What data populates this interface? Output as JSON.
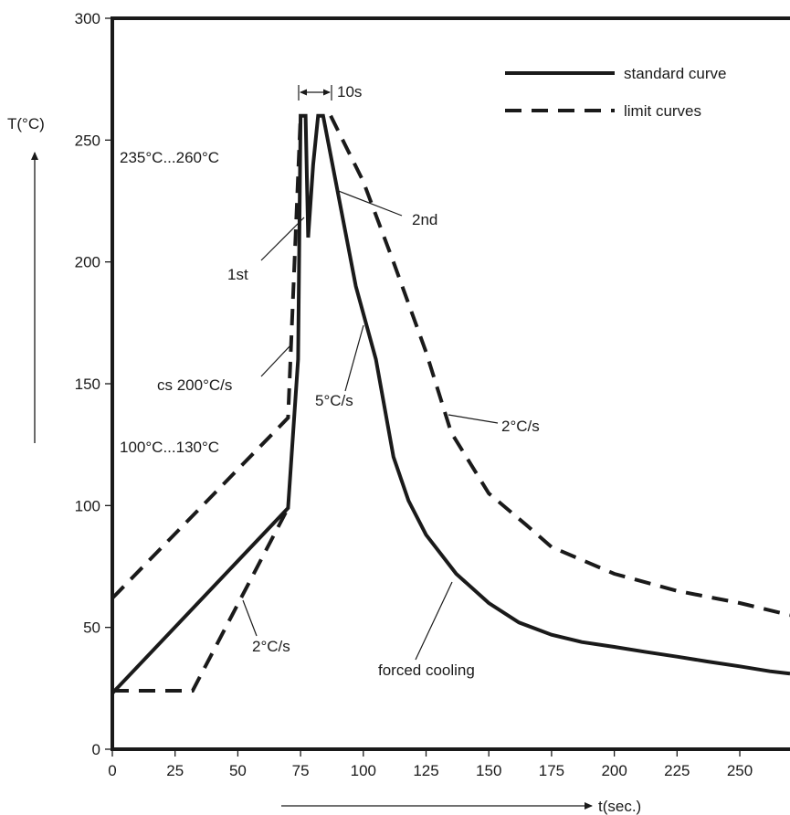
{
  "chart_data": {
    "type": "line",
    "title": "",
    "xlabel": "t(sec.)",
    "ylabel": "T(°C)",
    "xlim": [
      0,
      270
    ],
    "ylim": [
      0,
      300
    ],
    "x_ticks": [
      0,
      25,
      50,
      75,
      100,
      125,
      150,
      175,
      200,
      225,
      250
    ],
    "y_ticks": [
      0,
      50,
      100,
      150,
      200,
      250,
      300
    ],
    "grid": false,
    "legend_position": "top-right",
    "legend": [
      {
        "label": "standard curve",
        "style": "solid"
      },
      {
        "label": "limit curves",
        "style": "dashed"
      }
    ],
    "series": [
      {
        "name": "standard curve",
        "style": "solid",
        "points": [
          [
            0,
            23
          ],
          [
            70,
            99
          ],
          [
            74,
            160
          ],
          [
            75,
            260
          ],
          [
            77,
            260
          ],
          [
            78,
            210
          ],
          [
            80,
            240
          ],
          [
            82,
            260
          ],
          [
            84,
            260
          ],
          [
            97,
            190
          ],
          [
            105,
            160
          ],
          [
            112,
            120
          ],
          [
            118,
            102
          ],
          [
            125,
            88
          ],
          [
            137,
            72
          ],
          [
            150,
            60
          ],
          [
            162,
            52
          ],
          [
            175,
            47
          ],
          [
            187,
            44
          ],
          [
            200,
            42
          ],
          [
            212,
            40
          ],
          [
            225,
            38
          ],
          [
            237,
            36
          ],
          [
            250,
            34
          ],
          [
            262,
            32
          ],
          [
            270,
            31
          ]
        ]
      },
      {
        "name": "limit curves",
        "style": "dashed",
        "points": [
          [
            0,
            62
          ],
          [
            70,
            136
          ],
          [
            75,
            260
          ]
        ]
      },
      {
        "name": "limit curves",
        "style": "dashed",
        "points": [
          [
            0,
            24
          ],
          [
            32,
            24
          ],
          [
            70,
            99
          ]
        ]
      },
      {
        "name": "limit curves",
        "style": "dashed",
        "points": [
          [
            87,
            260
          ],
          [
            100,
            233
          ],
          [
            112,
            200
          ],
          [
            125,
            163
          ],
          [
            135,
            130
          ],
          [
            150,
            105
          ],
          [
            165,
            92
          ],
          [
            175,
            83
          ],
          [
            200,
            72
          ],
          [
            225,
            65
          ],
          [
            250,
            60
          ],
          [
            270,
            55
          ]
        ]
      }
    ],
    "annotations": [
      {
        "text": "10s"
      },
      {
        "text": "235°C...260°C"
      },
      {
        "text": "2nd"
      },
      {
        "text": "1st"
      },
      {
        "text": "cs 200°C/s"
      },
      {
        "text": "5°C/s"
      },
      {
        "text": "2°C/s"
      },
      {
        "text": "100°C...130°C"
      },
      {
        "text": "2°C/s"
      },
      {
        "text": "forced cooling"
      }
    ]
  }
}
